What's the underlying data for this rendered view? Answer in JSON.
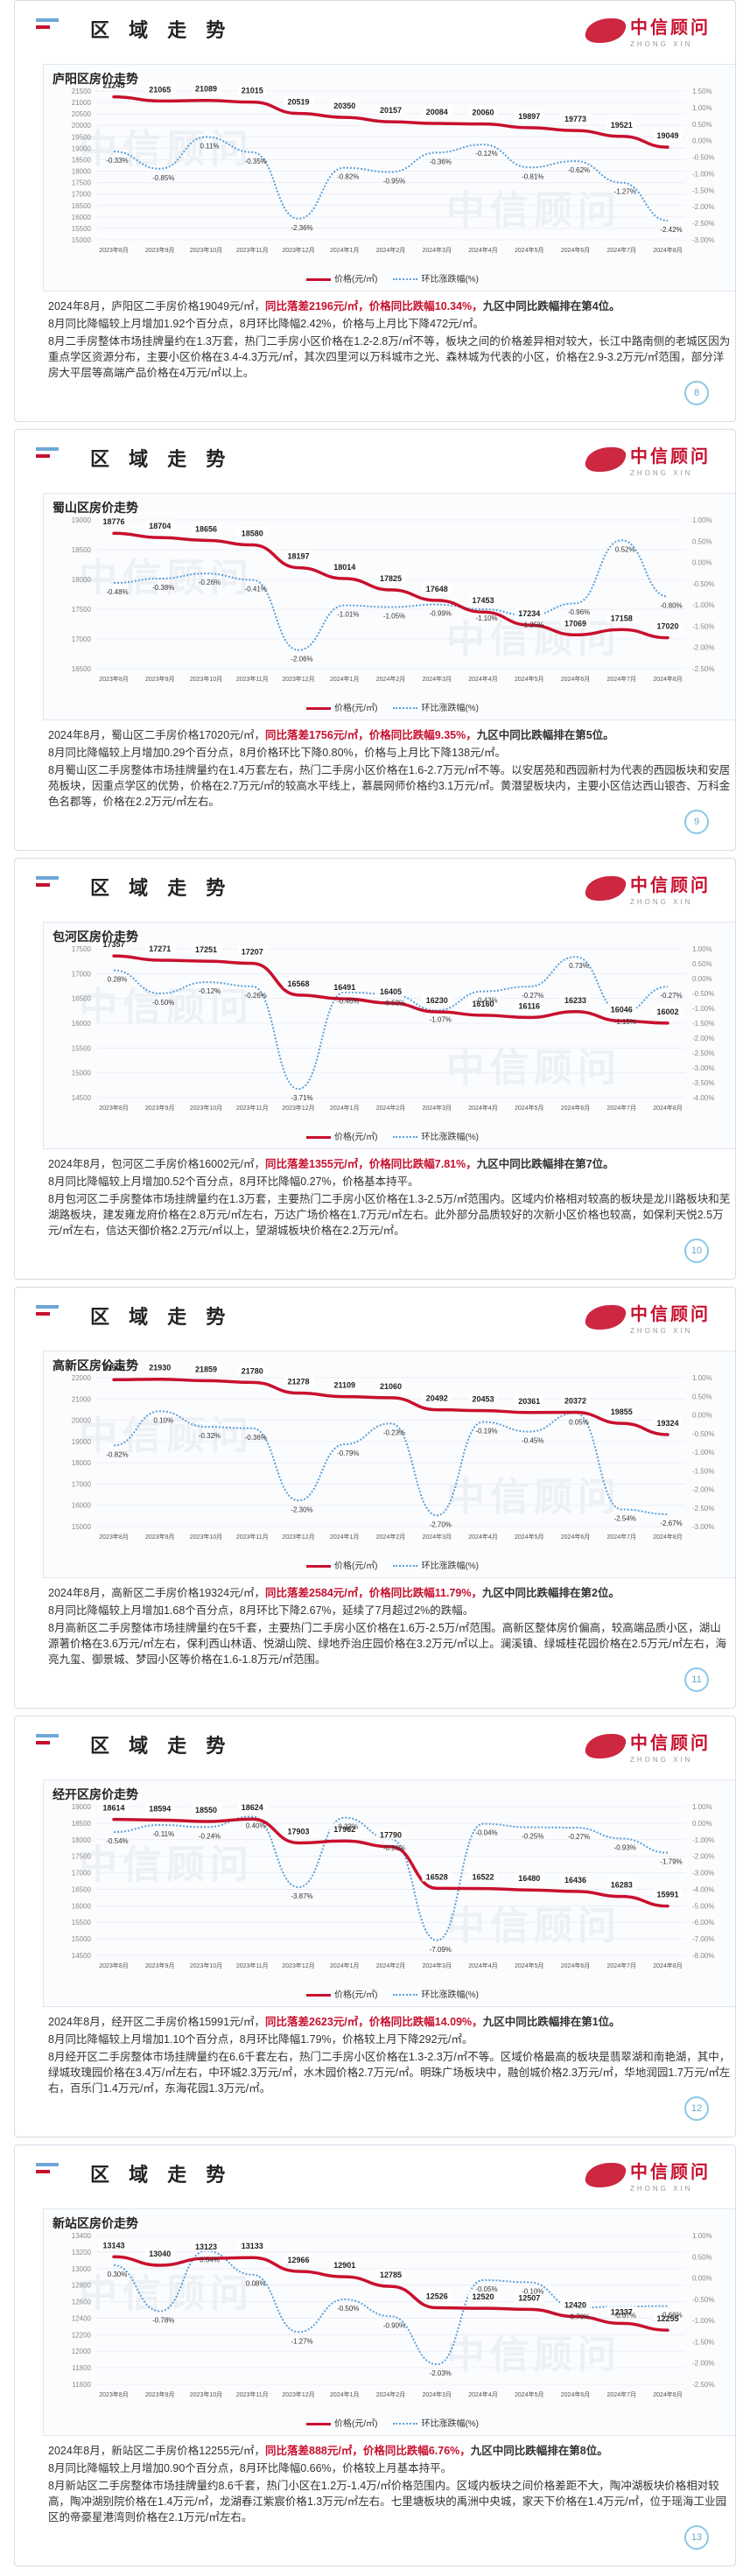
{
  "section_title": "区 域 走 势",
  "logo": {
    "cn": "中信顾问",
    "en": "ZHONG XIN"
  },
  "legend": {
    "price": "价格(元/㎡)",
    "change": "环比涨跌幅(%)"
  },
  "x_labels": [
    "2023年8月",
    "2023年9月",
    "2023年10月",
    "2023年11月",
    "2023年12月",
    "2024年1月",
    "2024年2月",
    "2024年3月",
    "2024年4月",
    "2024年5月",
    "2024年6月",
    "2024年7月",
    "2024年8月"
  ],
  "colors": {
    "price": "#c8102e",
    "change": "#5aa0d8",
    "accent": "#c8102e"
  },
  "panels": [
    {
      "title": "庐阳区房价走势",
      "page": "8",
      "left_ticks": [
        "21500",
        "21000",
        "20500",
        "20000",
        "19500",
        "19000",
        "18500",
        "18000",
        "17500",
        "17000",
        "16500",
        "16000",
        "15500",
        "15000"
      ],
      "right_ticks": [
        "1.50%",
        "1.00%",
        "0.50%",
        "0.00%",
        "-0.50%",
        "-1.00%",
        "-1.50%",
        "-2.00%",
        "-2.50%",
        "-3.00%"
      ],
      "desc_parts": [
        {
          "t": "2024年8月，庐阳区二手房价格19049元/㎡，",
          "c": ""
        },
        {
          "t": "同比落差2196元/㎡，价格同比跌幅10.34%，",
          "c": "red"
        },
        {
          "t": "九区中同比跌幅排在第4位。",
          "c": "bold"
        }
      ],
      "desc_line2": "8月同比降幅较上月增加1.92个百分点，8月环比降幅2.42%，价格与上月比下降472元/㎡。",
      "desc_line3": "8月二手房整体市场挂牌量约在1.3万套，热门二手房小区价格在1.2-2.8万/㎡不等，板块之间的价格差异相对较大，长江中路南侧的老城区因为重点学区资源分布，主要小区价格在3.4-4.3万元/㎡，其次四里河以万科城市之光、森林城为代表的小区，价格在2.9-3.2万元/㎡范围，部分洋房大平层等高端产品价格在4万元/㎡以上。"
    },
    {
      "title": "蜀山区房价走势",
      "page": "9",
      "left_ticks": [
        "19000",
        "18500",
        "18000",
        "17500",
        "17000",
        "16500"
      ],
      "right_ticks": [
        "1.00%",
        "0.50%",
        "0.00%",
        "-0.50%",
        "-1.00%",
        "-1.50%",
        "-2.00%",
        "-2.50%"
      ],
      "desc_parts": [
        {
          "t": "2024年8月，蜀山区二手房价格17020元/㎡，",
          "c": ""
        },
        {
          "t": "同比落差1756元/㎡，价格同比跌幅9.35%，",
          "c": "red"
        },
        {
          "t": "九区中同比跌幅排在第5位。",
          "c": "bold"
        }
      ],
      "desc_line2": "8月同比降幅较上月增加0.29个百分点，8月价格环比下降0.80%，价格与上月比下降138元/㎡。",
      "desc_line3": "8月蜀山区二手房整体市场挂牌量约在1.4万套左右，热门二手房小区价格在1.6-2.7万元/㎡不等。以安居苑和西园新村为代表的西园板块和安居苑板块，因重点学区的优势，价格在2.7万元/㎡的较高水平线上，慕晨网师价格约3.1万元/㎡。黄潜望板块内，主要小区信达西山银杏、万科金色名郡等，价格在2.2万元/㎡左右。"
    },
    {
      "title": "包河区房价走势",
      "page": "10",
      "left_ticks": [
        "17500",
        "17000",
        "16500",
        "16000",
        "15500",
        "15000",
        "14500"
      ],
      "right_ticks": [
        "1.00%",
        "0.50%",
        "0.00%",
        "-0.50%",
        "-1.00%",
        "-1.50%",
        "-2.00%",
        "-2.50%",
        "-3.00%",
        "-3.50%",
        "-4.00%"
      ],
      "desc_parts": [
        {
          "t": "2024年8月，包河区二手房价格16002元/㎡，",
          "c": ""
        },
        {
          "t": "同比落差1355元/㎡，价格同比跌幅7.81%，",
          "c": "red"
        },
        {
          "t": "九区中同比跌幅排在第7位。",
          "c": "bold"
        }
      ],
      "desc_line2": "8月同比降幅较上月增加0.52个百分点，8月环比降幅0.27%，价格基本持平。",
      "desc_line3": "8月包河区二手房整体市场挂牌量约在1.3万套，主要热门二手房小区价格在1.3-2.5万/㎡范围内。区域内价格相对较高的板块是龙川路板块和芜湖路板块，建发雍龙府价格在2.8万元/㎡左右，万达广场价格在1.7万元/㎡左右。此外部分品质较好的次新小区价格也较高，如保利天悦2.5万元/㎡左右，信达天御价格2.2万元/㎡以上，望湖城板块价格在2.2万元/㎡。"
    },
    {
      "title": "高新区房价走势",
      "page": "11",
      "left_ticks": [
        "22000",
        "21000",
        "20000",
        "19000",
        "18000",
        "17000",
        "16000",
        "15000"
      ],
      "right_ticks": [
        "1.00%",
        "0.50%",
        "0.00%",
        "-0.50%",
        "-1.00%",
        "-1.50%",
        "-2.00%",
        "-2.50%",
        "-3.00%"
      ],
      "desc_parts": [
        {
          "t": "2024年8月，高新区二手房价格19324元/㎡，",
          "c": ""
        },
        {
          "t": "同比落差2584元/㎡，价格同比跌幅11.79%，",
          "c": "red"
        },
        {
          "t": "九区中同比跌幅排在第2位。",
          "c": "bold"
        }
      ],
      "desc_line2": "8月同比降幅较上月增加1.68个百分点，8月环比下降2.67%，延续了7月超过2%的跌幅。",
      "desc_line3": "8月高新区二手房整体市场挂牌量约在5千套，主要热门二手房小区价格在1.6万-2.5万/㎡范围。高新区整体房价偏高，较高端品质小区，湖山源著价格在3.6万元/㎡左右，保利西山林语、悦湖山院、绿地乔治庄园价格在3.2万元/㎡以上。澜溪镇、绿城桂花园价格在2.5万元/㎡左右，海亮九玺、御景城、梦园小区等价格在1.6-1.8万元/㎡范围。"
    },
    {
      "title": "经开区房价走势",
      "page": "12",
      "left_ticks": [
        "19000",
        "18500",
        "18000",
        "17500",
        "17000",
        "16500",
        "16000",
        "15500",
        "15000",
        "14500"
      ],
      "right_ticks": [
        "1.00%",
        "0.00%",
        "-1.00%",
        "-2.00%",
        "-3.00%",
        "-4.00%",
        "-5.00%",
        "-6.00%",
        "-7.00%",
        "-8.00%"
      ],
      "desc_parts": [
        {
          "t": "2024年8月，经开区二手房价格15991元/㎡，",
          "c": ""
        },
        {
          "t": "同比落差2623元/㎡，价格同比跌幅14.09%，",
          "c": "red"
        },
        {
          "t": "九区中同比跌幅排在第1位。",
          "c": "bold"
        }
      ],
      "desc_line2": "8月同比降幅较上月增加1.10个百分点，8月环比降幅1.79%，价格较上月下降292元/㎡。",
      "desc_line3": "8月经开区二手房整体市场挂牌量约在6.6千套左右，热门二手房小区价格在1.3-2.3万/㎡不等。区域价格最高的板块是翡翠湖和南艳湖，其中，绿城玫瑰园价格在3.4万/㎡左右，中环城2.3万元/㎡，水木园价格2.7万元/㎡。明珠广场板块中，融创城价格2.3万元/㎡，华地润园1.7万元/㎡左右，百乐门1.4万元/㎡，东海花园1.3万元/㎡。"
    },
    {
      "title": "新站区房价走势",
      "page": "13",
      "left_ticks": [
        "13400",
        "13200",
        "13000",
        "12800",
        "12600",
        "12400",
        "12200",
        "12000",
        "11800",
        "11600"
      ],
      "right_ticks": [
        "1.00%",
        "0.50%",
        "0.00%",
        "-0.50%",
        "-1.00%",
        "-1.50%",
        "-2.00%",
        "-2.50%"
      ],
      "desc_parts": [
        {
          "t": "2024年8月，新站区二手房价格12255元/㎡，",
          "c": ""
        },
        {
          "t": "同比落差888元/㎡，价格同比跌幅6.76%，",
          "c": "red"
        },
        {
          "t": "九区中同比跌幅排在第8位。",
          "c": "bold"
        }
      ],
      "desc_line2": "8月同比降幅较上月增加0.90个百分点，8月环比降幅0.66%，价格较上月基本持平。",
      "desc_line3": "8月新站区二手房整体市场挂牌量约8.6千套，热门小区在1.2万-1.4万/㎡价格范围内。区域内板块之间价格差距不大，陶冲湖板块价格相对较高，陶冲湖别院价格在1.4万元/㎡，龙湖春江紫宸价格1.3万元/㎡左右。七里塘板块的禹洲中央城，家天下价格在1.4万元/㎡，位于瑶海工业园区的帝豪星港湾则价格在2.1万元/㎡左右。"
    }
  ],
  "chart_data": [
    {
      "type": "line",
      "title": "庐阳区房价走势",
      "x": [
        "2023年8月",
        "2023年9月",
        "2023年10月",
        "2023年11月",
        "2023年12月",
        "2024年1月",
        "2024年2月",
        "2024年3月",
        "2024年4月",
        "2024年5月",
        "2024年6月",
        "2024年7月",
        "2024年8月"
      ],
      "series": [
        {
          "name": "价格(元/㎡)",
          "axis": "left",
          "values": [
            21245,
            21065,
            21089,
            21015,
            20519,
            20350,
            20157,
            20084,
            20060,
            19897,
            19773,
            19521,
            19049
          ]
        },
        {
          "name": "环比涨跌幅(%)",
          "axis": "right",
          "values": [
            -0.33,
            -0.85,
            0.11,
            -0.35,
            -2.36,
            -0.82,
            -0.95,
            -0.36,
            -0.12,
            -0.81,
            -0.62,
            -1.27,
            -2.42
          ]
        }
      ],
      "ylim_left": [
        15000,
        21500
      ],
      "ylim_right": [
        -3.0,
        1.5
      ]
    },
    {
      "type": "line",
      "title": "蜀山区房价走势",
      "x": [
        "2023年8月",
        "2023年9月",
        "2023年10月",
        "2023年11月",
        "2023年12月",
        "2024年1月",
        "2024年2月",
        "2024年3月",
        "2024年4月",
        "2024年5月",
        "2024年6月",
        "2024年7月",
        "2024年8月"
      ],
      "series": [
        {
          "name": "价格(元/㎡)",
          "axis": "left",
          "values": [
            18776,
            18704,
            18656,
            18580,
            18197,
            18014,
            17825,
            17648,
            17453,
            17234,
            17069,
            17158,
            17020
          ]
        },
        {
          "name": "环比涨跌幅(%)",
          "axis": "right",
          "values": [
            -0.48,
            -0.38,
            -0.26,
            -0.41,
            -2.06,
            -1.01,
            -1.05,
            -0.99,
            -1.1,
            -1.25,
            -0.96,
            0.52,
            -0.8
          ]
        }
      ],
      "ylim_left": [
        16500,
        19000
      ],
      "ylim_right": [
        -2.5,
        1.0
      ]
    },
    {
      "type": "line",
      "title": "包河区房价走势",
      "x": [
        "2023年8月",
        "2023年9月",
        "2023年10月",
        "2023年11月",
        "2023年12月",
        "2024年1月",
        "2024年2月",
        "2024年3月",
        "2024年4月",
        "2024年5月",
        "2024年6月",
        "2024年7月",
        "2024年8月"
      ],
      "series": [
        {
          "name": "价格(元/㎡)",
          "axis": "left",
          "values": [
            17357,
            17271,
            17251,
            17207,
            16568,
            16491,
            16405,
            16230,
            16160,
            16116,
            16233,
            16046,
            16002
          ]
        },
        {
          "name": "环比涨跌幅(%)",
          "axis": "right",
          "values": [
            0.28,
            -0.5,
            -0.12,
            -0.26,
            -3.71,
            -0.46,
            -0.52,
            -1.07,
            -0.43,
            -0.27,
            0.73,
            -1.15,
            -0.27
          ]
        }
      ],
      "ylim_left": [
        14500,
        17500
      ],
      "ylim_right": [
        -4.0,
        1.0
      ]
    },
    {
      "type": "line",
      "title": "高新区房价走势",
      "x": [
        "2023年8月",
        "2023年9月",
        "2023年10月",
        "2023年11月",
        "2023年12月",
        "2024年1月",
        "2024年2月",
        "2024年3月",
        "2024年4月",
        "2024年5月",
        "2024年6月",
        "2024年7月",
        "2024年8月"
      ],
      "series": [
        {
          "name": "价格(元/㎡)",
          "axis": "left",
          "values": [
            21908,
            21930,
            21859,
            21780,
            21278,
            21109,
            21060,
            20492,
            20453,
            20361,
            20372,
            19855,
            19324
          ]
        },
        {
          "name": "环比涨跌幅(%)",
          "axis": "right",
          "values": [
            -0.82,
            0.1,
            -0.32,
            -0.36,
            -2.3,
            -0.79,
            -0.23,
            -2.7,
            -0.19,
            -0.45,
            0.05,
            -2.54,
            -2.67
          ]
        }
      ],
      "ylim_left": [
        15000,
        22000
      ],
      "ylim_right": [
        -3.0,
        1.0
      ]
    },
    {
      "type": "line",
      "title": "经开区房价走势",
      "x": [
        "2023年8月",
        "2023年9月",
        "2023年10月",
        "2023年11月",
        "2023年12月",
        "2024年1月",
        "2024年2月",
        "2024年3月",
        "2024年4月",
        "2024年5月",
        "2024年6月",
        "2024年7月",
        "2024年8月"
      ],
      "series": [
        {
          "name": "价格(元/㎡)",
          "axis": "left",
          "values": [
            18614,
            18594,
            18550,
            18624,
            17903,
            17962,
            17790,
            16528,
            16522,
            16480,
            16436,
            16283,
            15991
          ]
        },
        {
          "name": "环比涨跌幅(%)",
          "axis": "right",
          "values": [
            -0.54,
            -0.11,
            -0.24,
            0.4,
            -3.87,
            0.33,
            -0.96,
            -7.09,
            -0.04,
            -0.25,
            -0.27,
            -0.93,
            -1.79
          ]
        }
      ],
      "ylim_left": [
        14500,
        19000
      ],
      "ylim_right": [
        -8.0,
        1.0
      ]
    },
    {
      "type": "line",
      "title": "新站区房价走势",
      "x": [
        "2023年8月",
        "2023年9月",
        "2023年10月",
        "2023年11月",
        "2023年12月",
        "2024年1月",
        "2024年2月",
        "2024年3月",
        "2024年4月",
        "2024年5月",
        "2024年6月",
        "2024年7月",
        "2024年8月"
      ],
      "series": [
        {
          "name": "价格(元/㎡)",
          "axis": "left",
          "values": [
            13143,
            13040,
            13123,
            13133,
            12966,
            12901,
            12785,
            12526,
            12520,
            12507,
            12420,
            12337,
            12255
          ]
        },
        {
          "name": "环比涨跌幅(%)",
          "axis": "right",
          "values": [
            0.3,
            -0.78,
            0.64,
            0.08,
            -1.27,
            -0.5,
            -0.9,
            -2.03,
            -0.05,
            -0.1,
            -0.7,
            -0.67,
            -0.66
          ]
        }
      ],
      "ylim_left": [
        11600,
        13400
      ],
      "ylim_right": [
        -2.5,
        1.0
      ]
    }
  ]
}
